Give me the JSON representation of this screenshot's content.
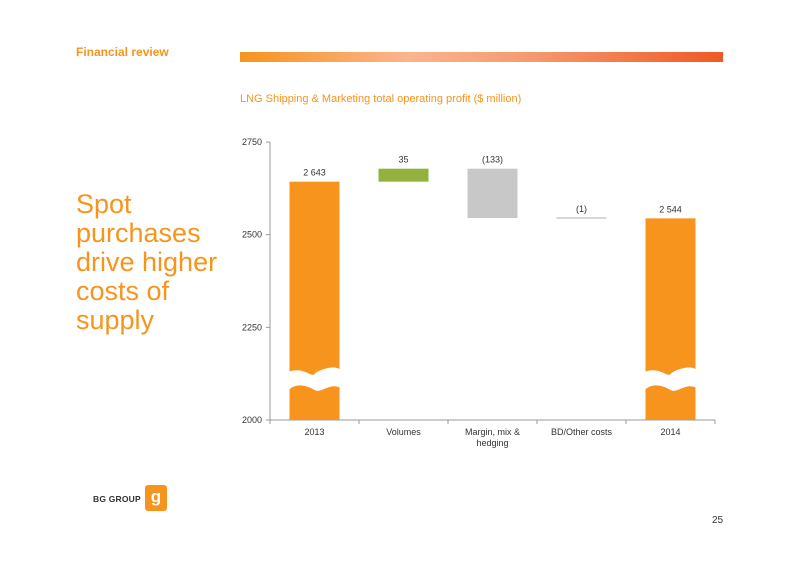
{
  "header": {
    "section_title": "Financial review",
    "band_colors": [
      "#F7941D",
      "#FBB48F",
      "#EF5A24"
    ]
  },
  "chart_title": "LNG Shipping & Marketing total operating profit ($ million)",
  "headline": "Spot purchases drive higher costs of supply",
  "logo": {
    "text": "BG GROUP",
    "icon": "bg-g-logo-icon"
  },
  "page_number": "25",
  "colors": {
    "accent": "#F7941D",
    "positive": "#93B13C",
    "negative": "#C8C8C8",
    "neutral": "#B0B0B0"
  },
  "chart_data": {
    "type": "bar",
    "subtype": "waterfall",
    "categories": [
      "2013",
      "Volumes",
      "Margin, mix & hedging",
      "BD/Other costs",
      "2014"
    ],
    "steps": [
      {
        "category": "2013",
        "kind": "total",
        "value": 2643,
        "label": "2 643"
      },
      {
        "category": "Volumes",
        "kind": "delta",
        "value": 35,
        "label": "35"
      },
      {
        "category": "Margin, mix & hedging",
        "kind": "delta",
        "value": -133,
        "label": "(133)"
      },
      {
        "category": "BD/Other costs",
        "kind": "delta",
        "value": -1,
        "label": "(1)"
      },
      {
        "category": "2014",
        "kind": "total",
        "value": 2544,
        "label": "2 544"
      }
    ],
    "ylim": [
      2000,
      2750
    ],
    "yticks": [
      2000,
      2250,
      2500,
      2750
    ],
    "axis_break": true,
    "grid": false
  }
}
